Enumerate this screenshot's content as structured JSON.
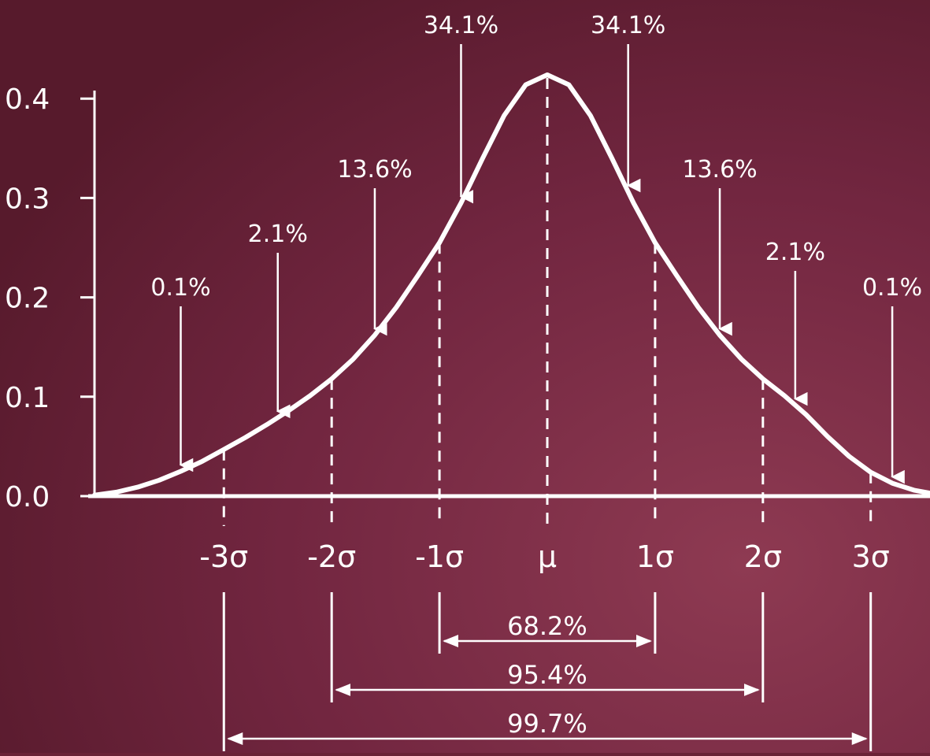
{
  "chart_data": {
    "type": "line",
    "title": "",
    "xlabel": "",
    "ylabel": "",
    "ylim": [
      0,
      0.42
    ],
    "xlim": [
      -4.2,
      3.55
    ],
    "grid": false,
    "legend": "none",
    "y_ticks": [
      {
        "value": 0.0,
        "label": "0.0"
      },
      {
        "value": 0.1,
        "label": "0.1"
      },
      {
        "value": 0.2,
        "label": "0.2"
      },
      {
        "value": 0.3,
        "label": "0.3"
      },
      {
        "value": 0.4,
        "label": "0.4"
      }
    ],
    "x_ticks": [
      {
        "value": -3,
        "label": "-3σ"
      },
      {
        "value": -2,
        "label": "-2σ"
      },
      {
        "value": -1,
        "label": "-1σ"
      },
      {
        "value": 0,
        "label": "μ"
      },
      {
        "value": 1,
        "label": "1σ"
      },
      {
        "value": 2,
        "label": "2σ"
      },
      {
        "value": 3,
        "label": "3σ"
      }
    ],
    "curve": {
      "x": [
        -4.2,
        -4.0,
        -3.8,
        -3.6,
        -3.4,
        -3.2,
        -3.0,
        -2.8,
        -2.6,
        -2.4,
        -2.2,
        -2.0,
        -1.8,
        -1.6,
        -1.4,
        -1.2,
        -1.0,
        -0.8,
        -0.6,
        -0.4,
        -0.2,
        0.0,
        0.2,
        0.4,
        0.6,
        0.8,
        1.0,
        1.2,
        1.4,
        1.6,
        1.8,
        2.0,
        2.2,
        2.4,
        2.6,
        2.8,
        3.0,
        3.2,
        3.4,
        3.55
      ],
      "y": [
        0.001,
        0.004,
        0.009,
        0.016,
        0.025,
        0.035,
        0.047,
        0.059,
        0.072,
        0.086,
        0.101,
        0.118,
        0.138,
        0.162,
        0.19,
        0.222,
        0.255,
        0.295,
        0.34,
        0.383,
        0.414,
        0.424,
        0.414,
        0.383,
        0.34,
        0.295,
        0.255,
        0.222,
        0.19,
        0.162,
        0.138,
        0.118,
        0.101,
        0.082,
        0.06,
        0.04,
        0.024,
        0.013,
        0.006,
        0.003
      ]
    },
    "region_labels": [
      {
        "label": "0.1%",
        "x": -3.4
      },
      {
        "label": "2.1%",
        "x": -2.5
      },
      {
        "label": "13.6%",
        "x": -1.6
      },
      {
        "label": "34.1%",
        "x": -0.8
      },
      {
        "label": "34.1%",
        "x": 0.75
      },
      {
        "label": "13.6%",
        "x": 1.6
      },
      {
        "label": "2.1%",
        "x": 2.3
      },
      {
        "label": "0.1%",
        "x": 3.2
      }
    ],
    "ranges": [
      {
        "label": "68.2%",
        "from": -1,
        "to": 1
      },
      {
        "label": "95.4%",
        "from": -2,
        "to": 2
      },
      {
        "label": "99.7%",
        "from": -3,
        "to": 3
      }
    ]
  }
}
